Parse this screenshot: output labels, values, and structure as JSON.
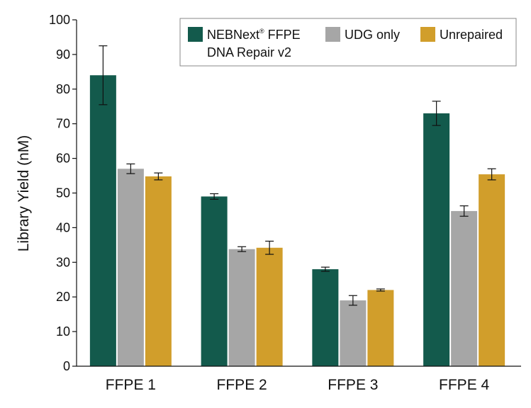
{
  "chart_data": {
    "type": "bar",
    "title": "",
    "xlabel": "",
    "ylabel": "Library Yield (nM)",
    "ylim": [
      0,
      100
    ],
    "yticks": [
      0,
      10,
      20,
      30,
      40,
      50,
      60,
      70,
      80,
      90,
      100
    ],
    "categories": [
      "FFPE 1",
      "FFPE 2",
      "FFPE 3",
      "FFPE 4"
    ],
    "series": [
      {
        "name": "NEBNext® FFPE DNA Repair v2",
        "name_line1": "NEBNext",
        "name_reg": "®",
        "name_line1_rest": " FFPE",
        "name_line2": "DNA Repair v2",
        "color": "#135a4c",
        "values": [
          84,
          49,
          28,
          73
        ],
        "errors": [
          8.5,
          0.8,
          0.6,
          3.5
        ]
      },
      {
        "name": "UDG only",
        "color": "#a6a6a6",
        "values": [
          57,
          33.8,
          19,
          44.8
        ],
        "errors": [
          1.4,
          0.7,
          1.4,
          1.5
        ]
      },
      {
        "name": "Unrepaired",
        "color": "#d19e2b",
        "values": [
          54.8,
          34.2,
          22,
          55.4
        ],
        "errors": [
          1.0,
          1.9,
          0.3,
          1.6
        ]
      }
    ],
    "legend_position": "top-right",
    "grid": false
  }
}
